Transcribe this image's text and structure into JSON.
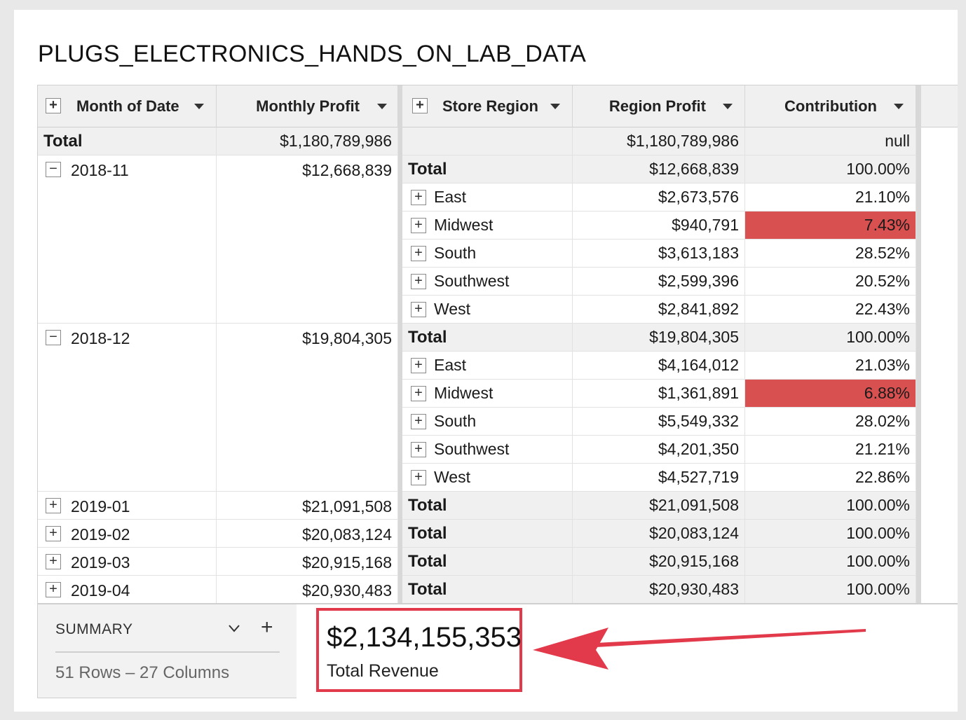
{
  "title": "PLUGS_ELECTRONICS_HANDS_ON_LAB_DATA",
  "columns": {
    "month": "Month of Date",
    "monthly_profit": "Monthly Profit",
    "store_region": "Store Region",
    "region_profit": "Region Profit",
    "contribution": "Contribution"
  },
  "grand_total": {
    "label": "Total",
    "monthly_profit": "$1,180,789,986",
    "region_profit": "$1,180,789,986",
    "contribution": "null"
  },
  "months": [
    {
      "month": "2018-11",
      "expanded": true,
      "monthly_profit": "$12,668,839",
      "rows": [
        {
          "region": "Total",
          "profit": "$12,668,839",
          "contribution": "100.00%",
          "is_total": true
        },
        {
          "region": "East",
          "profit": "$2,673,576",
          "contribution": "21.10%"
        },
        {
          "region": "Midwest",
          "profit": "$940,791",
          "contribution": "7.43%",
          "highlight": true
        },
        {
          "region": "South",
          "profit": "$3,613,183",
          "contribution": "28.52%"
        },
        {
          "region": "Southwest",
          "profit": "$2,599,396",
          "contribution": "20.52%"
        },
        {
          "region": "West",
          "profit": "$2,841,892",
          "contribution": "22.43%"
        }
      ]
    },
    {
      "month": "2018-12",
      "expanded": true,
      "monthly_profit": "$19,804,305",
      "rows": [
        {
          "region": "Total",
          "profit": "$19,804,305",
          "contribution": "100.00%",
          "is_total": true
        },
        {
          "region": "East",
          "profit": "$4,164,012",
          "contribution": "21.03%"
        },
        {
          "region": "Midwest",
          "profit": "$1,361,891",
          "contribution": "6.88%",
          "highlight": true
        },
        {
          "region": "South",
          "profit": "$5,549,332",
          "contribution": "28.02%"
        },
        {
          "region": "Southwest",
          "profit": "$4,201,350",
          "contribution": "21.21%"
        },
        {
          "region": "West",
          "profit": "$4,527,719",
          "contribution": "22.86%"
        }
      ]
    },
    {
      "month": "2019-01",
      "expanded": false,
      "monthly_profit": "$21,091,508",
      "rows": [
        {
          "region": "Total",
          "profit": "$21,091,508",
          "contribution": "100.00%",
          "is_total": true
        }
      ]
    },
    {
      "month": "2019-02",
      "expanded": false,
      "monthly_profit": "$20,083,124",
      "rows": [
        {
          "region": "Total",
          "profit": "$20,083,124",
          "contribution": "100.00%",
          "is_total": true
        }
      ]
    },
    {
      "month": "2019-03",
      "expanded": false,
      "monthly_profit": "$20,915,168",
      "rows": [
        {
          "region": "Total",
          "profit": "$20,915,168",
          "contribution": "100.00%",
          "is_total": true
        }
      ]
    },
    {
      "month": "2019-04",
      "expanded": false,
      "monthly_profit": "$20,930,483",
      "rows": [
        {
          "region": "Total",
          "profit": "$20,930,483",
          "contribution": "100.00%",
          "is_total": true
        }
      ]
    }
  ],
  "summary": {
    "title": "SUMMARY",
    "rows_columns": "51 Rows – 27 Columns"
  },
  "kpi": {
    "value": "$2,134,155,353",
    "label": "Total Revenue"
  },
  "colors": {
    "highlight": "#d95050",
    "annotation": "#e23a4b"
  }
}
